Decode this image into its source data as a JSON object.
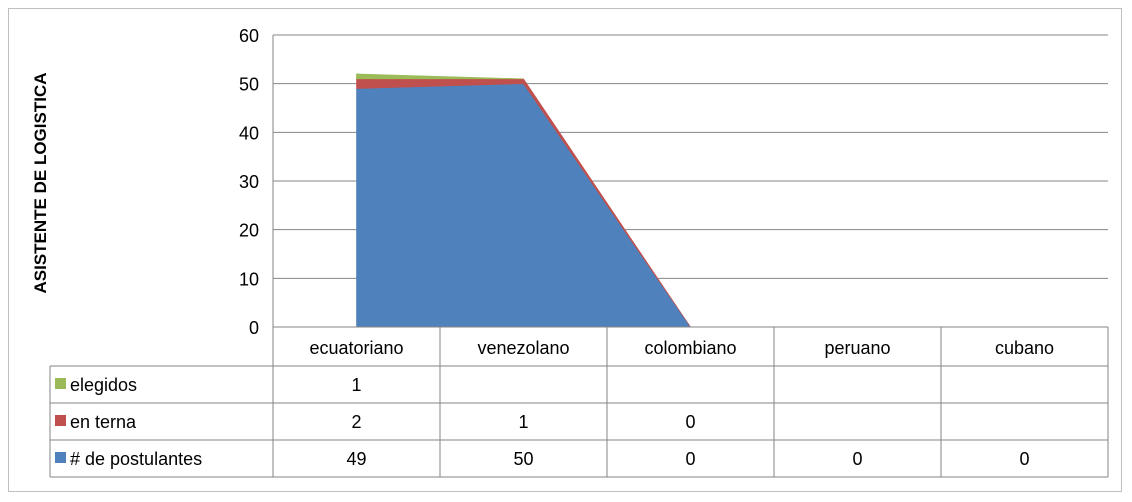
{
  "chart_data": {
    "type": "area",
    "stacked": true,
    "ylabel": "ASISTENTE DE LOGISTICA",
    "xlabel": "",
    "ylim": [
      0,
      60
    ],
    "yticks": [
      "0",
      "10",
      "20",
      "30",
      "40",
      "50",
      "60"
    ],
    "grid": true,
    "legend": "data-table-left",
    "categories": [
      "ecuatoriano",
      "venezolano",
      "colombiano",
      "peruano",
      "cubano"
    ],
    "series": [
      {
        "name": "# de postulantes",
        "color": "#4F81BD",
        "values": [
          49,
          50,
          0,
          null,
          null
        ],
        "labels": [
          "49",
          "50",
          "0",
          "0",
          "0"
        ]
      },
      {
        "name": "en terna",
        "color": "#C0504D",
        "values": [
          2,
          1,
          0,
          null,
          null
        ],
        "labels": [
          "2",
          "1",
          "0",
          "",
          ""
        ]
      },
      {
        "name": "elegidos",
        "color": "#9BBB59",
        "values": [
          1,
          null,
          null,
          null,
          null
        ],
        "labels": [
          "1",
          "",
          "",
          "",
          ""
        ]
      }
    ],
    "table_row_order": [
      "elegidos",
      "en terna",
      "# de postulantes"
    ]
  }
}
